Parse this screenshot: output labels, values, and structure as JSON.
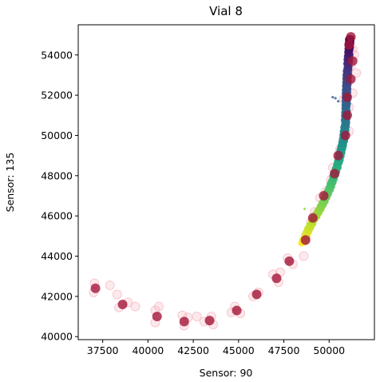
{
  "chart_data": {
    "type": "scatter",
    "title": "Vial 8",
    "xlabel": "Sensor: 90",
    "ylabel": "Sensor: 135",
    "xlim": [
      36150,
      52500
    ],
    "ylim": [
      39850,
      55500
    ],
    "xticks": [
      37500,
      40000,
      42500,
      45000,
      47500,
      50000
    ],
    "yticks": [
      40000,
      42000,
      44000,
      46000,
      48000,
      50000,
      52000,
      54000
    ],
    "grid": false,
    "colormap": "viridis (purple at high Sensor 135 to yellow at low)",
    "series": [
      {
        "marker": "dark red circle",
        "color": "#a3173a",
        "points": [
          [
            37100,
            42400
          ],
          [
            38600,
            41600
          ],
          [
            40500,
            41000
          ],
          [
            42000,
            40750
          ],
          [
            43400,
            40800
          ],
          [
            44900,
            41300
          ],
          [
            46000,
            42100
          ],
          [
            47100,
            42900
          ],
          [
            47800,
            43750
          ],
          [
            48700,
            44800
          ],
          [
            49100,
            45900
          ],
          [
            49700,
            47000
          ],
          [
            50300,
            48100
          ],
          [
            50500,
            49000
          ],
          [
            50900,
            50000
          ],
          [
            51000,
            51000
          ],
          [
            51000,
            51900
          ],
          [
            51200,
            52800
          ],
          [
            51300,
            53700
          ],
          [
            51100,
            54500
          ],
          [
            51200,
            54900
          ]
        ]
      },
      {
        "marker": "pink ring",
        "color": "#f4a6b4",
        "points": [
          [
            37050,
            42650
          ],
          [
            37000,
            42200
          ],
          [
            37900,
            42550
          ],
          [
            38300,
            42100
          ],
          [
            38400,
            41450
          ],
          [
            38900,
            41700
          ],
          [
            39300,
            41500
          ],
          [
            40400,
            41300
          ],
          [
            40400,
            40700
          ],
          [
            40600,
            41500
          ],
          [
            41900,
            41050
          ],
          [
            42000,
            40550
          ],
          [
            42200,
            40950
          ],
          [
            42700,
            41000
          ],
          [
            43100,
            40750
          ],
          [
            43500,
            41000
          ],
          [
            43600,
            40600
          ],
          [
            44600,
            41200
          ],
          [
            44800,
            41500
          ],
          [
            45100,
            41150
          ],
          [
            45800,
            42000
          ],
          [
            46100,
            42200
          ],
          [
            46900,
            43100
          ],
          [
            47200,
            42700
          ],
          [
            47300,
            43200
          ],
          [
            47700,
            43900
          ],
          [
            48000,
            43600
          ],
          [
            48600,
            44000
          ],
          [
            48700,
            45000
          ],
          [
            49000,
            45700
          ],
          [
            49200,
            46200
          ],
          [
            49500,
            46900
          ],
          [
            49800,
            47200
          ],
          [
            50100,
            47800
          ],
          [
            50200,
            48400
          ],
          [
            50500,
            48900
          ],
          [
            50600,
            49300
          ],
          [
            50800,
            49800
          ],
          [
            51100,
            50200
          ],
          [
            50900,
            50700
          ],
          [
            51100,
            51400
          ],
          [
            50800,
            51800
          ],
          [
            51300,
            52100
          ],
          [
            51000,
            52600
          ],
          [
            51500,
            53100
          ],
          [
            51200,
            53500
          ],
          [
            51400,
            54000
          ],
          [
            51300,
            54300
          ]
        ]
      },
      {
        "marker": "small dots colored by y (viridis)",
        "curve": [
          [
            48550,
            44650
          ],
          [
            48700,
            45000
          ],
          [
            48900,
            45400
          ],
          [
            49150,
            45800
          ],
          [
            49400,
            46200
          ],
          [
            49650,
            46600
          ],
          [
            49850,
            47000
          ],
          [
            50050,
            47400
          ],
          [
            50200,
            47800
          ],
          [
            50350,
            48200
          ],
          [
            50500,
            48600
          ],
          [
            50600,
            49000
          ],
          [
            50700,
            49400
          ],
          [
            50800,
            49800
          ],
          [
            50850,
            50200
          ],
          [
            50900,
            50600
          ],
          [
            50920,
            51000
          ],
          [
            50940,
            51400
          ],
          [
            50950,
            51800
          ],
          [
            50960,
            52200
          ],
          [
            50980,
            52600
          ],
          [
            51000,
            53000
          ],
          [
            51030,
            53400
          ],
          [
            51060,
            53800
          ],
          [
            51100,
            54200
          ],
          [
            51130,
            54600
          ],
          [
            51140,
            54850
          ]
        ],
        "outliers": [
          [
            48650,
            46350
          ],
          [
            50200,
            51900
          ],
          [
            50500,
            51700
          ],
          [
            50800,
            51600
          ],
          [
            50350,
            51850
          ]
        ]
      }
    ]
  }
}
